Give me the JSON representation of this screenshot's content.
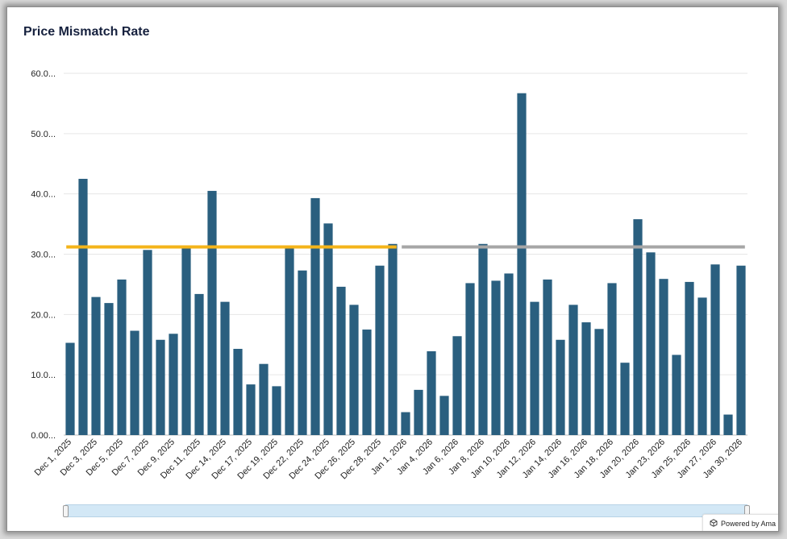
{
  "chart_data": {
    "type": "bar",
    "title": "Price Mismatch Rate",
    "xlabel": "",
    "ylabel": "",
    "ylim": [
      0,
      60
    ],
    "y_ticks": [
      "0.00...",
      "10.0...",
      "20.0...",
      "30.0...",
      "40.0...",
      "50.0...",
      "60.0..."
    ],
    "grid": true,
    "categories": [
      "Dec 1, 2025",
      "",
      "Dec 3, 2025",
      "",
      "Dec 5, 2025",
      "",
      "Dec 7, 2025",
      "",
      "Dec 9, 2025",
      "",
      "Dec 11, 2025",
      "",
      "Dec 14, 2025",
      "",
      "Dec 17, 2025",
      "",
      "Dec 19, 2025",
      "",
      "Dec 22, 2025",
      "",
      "Dec 24, 2025",
      "",
      "Dec 26, 2025",
      "",
      "Dec 28, 2025",
      "",
      "Jan 1, 2026",
      "",
      "Jan 4, 2026",
      "",
      "Jan 6, 2026",
      "",
      "Jan 8, 2026",
      "",
      "Jan 10, 2026",
      "",
      "Jan 12, 2026",
      "",
      "Jan 14, 2026",
      "",
      "Jan 16, 2026",
      "",
      "Jan 18, 2026",
      "",
      "Jan 20, 2026",
      "",
      "Jan 23, 2026",
      "",
      "Jan 25, 2026",
      "",
      "Jan 27, 2026",
      "",
      "Jan 30, 2026"
    ],
    "values": [
      15.3,
      42.5,
      22.9,
      21.9,
      25.8,
      17.3,
      30.7,
      15.8,
      16.8,
      31.0,
      23.4,
      40.5,
      22.1,
      14.3,
      8.4,
      11.8,
      8.1,
      31.0,
      27.3,
      39.3,
      35.1,
      24.6,
      21.6,
      17.5,
      28.1,
      31.7,
      3.8,
      7.5,
      13.9,
      6.5,
      16.4,
      25.2,
      31.7,
      25.6,
      26.8,
      56.7,
      22.1,
      25.8,
      15.8,
      21.6,
      18.7,
      17.6,
      25.2,
      12.0,
      35.8,
      30.3,
      25.9,
      13.3,
      25.4,
      22.8,
      28.3,
      3.4,
      28.1
    ],
    "bar_color": "#2a5f7f",
    "reference_lines": [
      {
        "value": 31.2,
        "from": "Dec 1, 2025",
        "to": "Dec 31, 2025",
        "color": "#f4b41a"
      },
      {
        "value": 31.2,
        "from": "Jan 1, 2026",
        "to": "Jan 31, 2026",
        "color": "#a6a6a6"
      }
    ]
  },
  "footer": {
    "powered_by": "Powered by Ama"
  }
}
